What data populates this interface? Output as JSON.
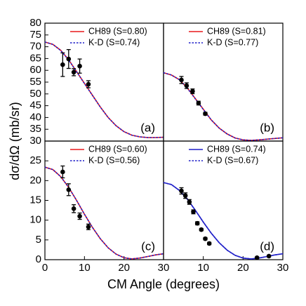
{
  "xlabel": "CM Angle (degrees)",
  "ylabel": "dσ/dΩ (mb/sr)",
  "chart_data": [
    {
      "type": "line",
      "annotation": "(a)",
      "xlim": [
        0,
        30
      ],
      "ylim": [
        30,
        80
      ],
      "yticks": [
        30,
        35,
        40,
        45,
        50,
        55,
        60,
        65,
        70,
        75,
        80
      ],
      "x": [
        0,
        2,
        4,
        6,
        8,
        10,
        12,
        14,
        16,
        18,
        20,
        22,
        24,
        26,
        28,
        30
      ],
      "series": [
        {
          "name": "CH89 (S=0.80)",
          "color": "#e8191b",
          "dash": "solid",
          "values": [
            72,
            71,
            68.5,
            64.5,
            59.5,
            54.5,
            49.5,
            44.5,
            40,
            36.5,
            34,
            32.5,
            31.8,
            31.5,
            31.5,
            31.6
          ]
        },
        {
          "name": "K-D (S=0.74)",
          "color": "#1f1fc8",
          "dash": "dotted",
          "values": [
            72,
            71,
            68.4,
            64.4,
            59.4,
            54.4,
            49.4,
            44.4,
            40,
            36.5,
            34,
            32.5,
            31.8,
            31.5,
            31.5,
            31.6
          ]
        }
      ],
      "points": {
        "x": [
          4.5,
          6,
          7.3,
          8.8,
          11
        ],
        "values": [
          62.4,
          64.8,
          59.2,
          61.8,
          54.1
        ],
        "errors": [
          5,
          4,
          1.5,
          3,
          1.5
        ]
      }
    },
    {
      "type": "line",
      "annotation": "(b)",
      "xlim": [
        0,
        30
      ],
      "ylim": [
        30,
        80
      ],
      "x": [
        0,
        2,
        4,
        6,
        8,
        10,
        12,
        14,
        16,
        18,
        20,
        22,
        24,
        26,
        28,
        30
      ],
      "series": [
        {
          "name": "CH89 (S=0.81)",
          "color": "#e8191b",
          "dash": "solid",
          "values": [
            59,
            58,
            56,
            52.5,
            48,
            43.5,
            39,
            35.5,
            33,
            31.3,
            30.5,
            30.3,
            30.5,
            30.8,
            31.1,
            31.4
          ]
        },
        {
          "name": "K-D (S=0.77)",
          "color": "#1f1fc8",
          "dash": "dotted",
          "values": [
            59,
            58,
            56,
            52.4,
            47.9,
            43.4,
            39,
            35.5,
            33,
            31.3,
            30.5,
            30.3,
            30.5,
            30.8,
            31.1,
            31.4
          ]
        }
      ],
      "points": {
        "x": [
          4.5,
          5.8,
          7.3,
          8.8,
          10.5
        ],
        "values": [
          55.9,
          53.5,
          51.1,
          46.1,
          41.6
        ],
        "errors": [
          1.5,
          1.2,
          1,
          0.8,
          0.6
        ]
      }
    },
    {
      "type": "line",
      "annotation": "(c)",
      "xlim": [
        0,
        30
      ],
      "ylim": [
        0,
        30
      ],
      "yticks": [
        0,
        5,
        10,
        15,
        20,
        25
      ],
      "xticks": [
        0,
        10,
        20,
        30
      ],
      "x": [
        0,
        2,
        4,
        6,
        8,
        10,
        12,
        14,
        16,
        18,
        20,
        22,
        24,
        26,
        28,
        30
      ],
      "series": [
        {
          "name": "CH89 (S=0.60)",
          "color": "#e8191b",
          "dash": "solid",
          "values": [
            23.4,
            22.8,
            21,
            18.3,
            15,
            11.5,
            8.2,
            5.3,
            3,
            1.4,
            0.5,
            0.2,
            0.4,
            0.8,
            1.2,
            1.5
          ]
        },
        {
          "name": "K-D (S=0.56)",
          "color": "#1f1fc8",
          "dash": "dotted",
          "values": [
            23.4,
            22.8,
            21,
            18.3,
            15,
            11.5,
            8.2,
            5.3,
            3,
            1.4,
            0.5,
            0.2,
            0.4,
            0.8,
            1.2,
            1.5
          ]
        }
      ],
      "points": {
        "x": [
          4.5,
          6,
          7.3,
          8.8,
          11
        ],
        "values": [
          22.2,
          17.7,
          12.9,
          11,
          8.3
        ],
        "errors": [
          1.5,
          1.5,
          1,
          0.8,
          0.7
        ]
      }
    },
    {
      "type": "line",
      "annotation": "(d)",
      "xlim": [
        0,
        30
      ],
      "ylim": [
        0,
        30
      ],
      "xticks": [
        10,
        20,
        30
      ],
      "x": [
        0,
        2,
        4,
        6,
        8,
        10,
        12,
        14,
        16,
        18,
        20,
        22,
        24,
        26,
        28,
        30
      ],
      "series": [
        {
          "name": "CH89 (S=0.74)",
          "color": "#1f1fc8",
          "dash": "solid",
          "values": [
            19.5,
            19,
            17.5,
            15.3,
            12.5,
            9.5,
            6.7,
            4.3,
            2.4,
            1.1,
            0.4,
            0.2,
            0.4,
            0.8,
            1.2,
            1.5
          ]
        },
        {
          "name": "K-D (S=0.67)",
          "color": "#1f1fc8",
          "dash": "dotted",
          "values": [
            19.5,
            19,
            17.5,
            15.3,
            12.5,
            9.5,
            6.7,
            4.3,
            2.4,
            1.1,
            0.4,
            0.2,
            0.4,
            0.8,
            1.2,
            1.5
          ]
        }
      ],
      "points": {
        "x": [
          4.5,
          5.5,
          6.5,
          7.5,
          8.5,
          9.5,
          10.5,
          11.5,
          23.5,
          26.5
        ],
        "values": [
          17.4,
          16.2,
          14.6,
          12.1,
          9.2,
          7.6,
          5.3,
          4.1,
          0.5,
          0.9
        ],
        "errors": [
          0.8,
          0.7,
          0.6,
          0.5,
          0.4,
          0.3,
          0.3,
          0.3,
          0.2,
          0.2
        ]
      }
    }
  ]
}
